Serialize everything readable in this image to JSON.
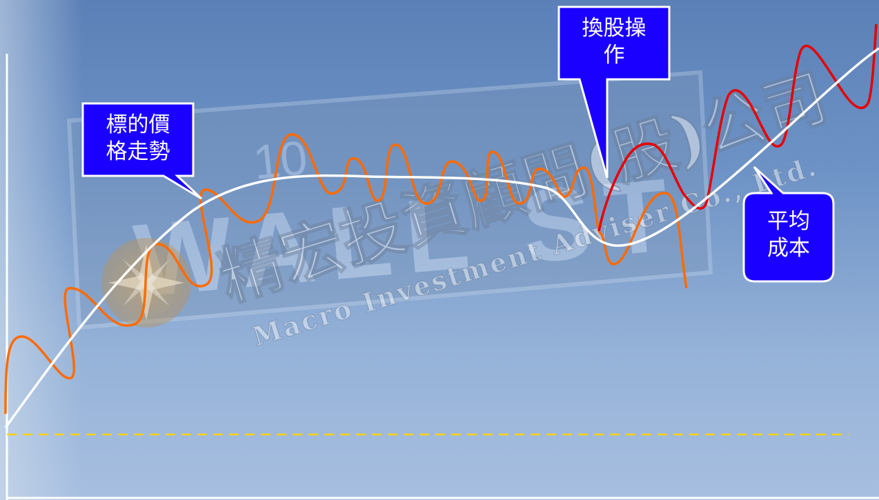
{
  "watermark": {
    "company_zh": "精宏投資顧問(股)公司",
    "company_en": "Macro Investment Adviser Co., Ltd."
  },
  "background_sign": {
    "arrow_number": "10",
    "street_name": "WALL ST"
  },
  "callouts": {
    "price_trend": "標的價格走勢",
    "price_trend_line1": "標的價",
    "price_trend_line2": "格走勢",
    "swap_operation": "換股操作",
    "swap_operation_line1": "換股操",
    "swap_operation_line2": "作",
    "average_cost": "平均成本",
    "average_cost_line1": "平均",
    "average_cost_line2": "成本"
  },
  "colors": {
    "price_line": "#ff6a00",
    "swapped_line": "#e60000",
    "average_cost_line": "#ffffff",
    "baseline": "#ffd200",
    "callout_fill": "#1a00ff",
    "callout_border": "#ffffff"
  }
}
